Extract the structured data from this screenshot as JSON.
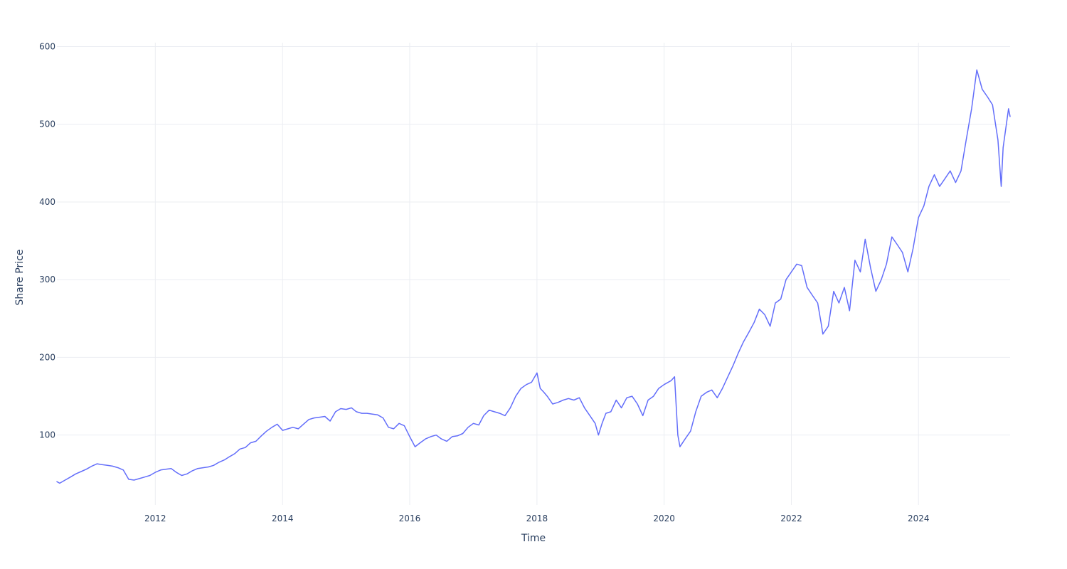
{
  "chart_data": {
    "type": "line",
    "title": "",
    "xlabel": "Time",
    "ylabel": "Share Price",
    "xlim": [
      "2010-06-15",
      "2025-06-10"
    ],
    "ylim": [
      10,
      605
    ],
    "x_ticks": [
      "2012",
      "2014",
      "2016",
      "2018",
      "2020",
      "2022",
      "2024"
    ],
    "y_ticks": [
      100,
      200,
      300,
      400,
      500,
      600
    ],
    "grid": true,
    "legend": "none",
    "colors": {
      "line": "#636efa",
      "grid": "#ebedf2",
      "text": "#2a3f5f"
    },
    "series": [
      {
        "x": [
          "2010-06-15",
          "2010-07-01",
          "2010-08-01",
          "2010-09-01",
          "2010-10-01",
          "2010-11-01",
          "2010-12-01",
          "2011-01-01",
          "2011-02-01",
          "2011-03-01",
          "2011-04-01",
          "2011-05-01",
          "2011-06-01",
          "2011-07-01",
          "2011-08-01",
          "2011-09-01",
          "2011-10-01",
          "2011-11-01",
          "2011-12-01",
          "2012-01-01",
          "2012-02-01",
          "2012-03-01",
          "2012-04-01",
          "2012-05-01",
          "2012-06-01",
          "2012-07-01",
          "2012-08-01",
          "2012-09-01",
          "2012-10-01",
          "2012-11-01",
          "2012-12-01",
          "2013-01-01",
          "2013-02-01",
          "2013-03-01",
          "2013-04-01",
          "2013-05-01",
          "2013-06-01",
          "2013-07-01",
          "2013-08-01",
          "2013-09-01",
          "2013-10-01",
          "2013-11-01",
          "2013-12-01",
          "2014-01-01",
          "2014-02-01",
          "2014-03-01",
          "2014-04-01",
          "2014-05-01",
          "2014-06-01",
          "2014-07-01",
          "2014-08-01",
          "2014-09-01",
          "2014-10-01",
          "2014-11-01",
          "2014-12-01",
          "2015-01-01",
          "2015-02-01",
          "2015-03-01",
          "2015-04-01",
          "2015-05-01",
          "2015-06-01",
          "2015-07-01",
          "2015-08-01",
          "2015-09-01",
          "2015-10-01",
          "2015-11-01",
          "2015-12-01",
          "2016-01-01",
          "2016-02-01",
          "2016-03-01",
          "2016-04-01",
          "2016-05-01",
          "2016-06-01",
          "2016-07-01",
          "2016-08-01",
          "2016-09-01",
          "2016-10-01",
          "2016-11-01",
          "2016-12-01",
          "2017-01-01",
          "2017-02-01",
          "2017-03-01",
          "2017-04-01",
          "2017-05-01",
          "2017-06-01",
          "2017-07-01",
          "2017-08-01",
          "2017-09-01",
          "2017-10-01",
          "2017-11-01",
          "2017-12-01",
          "2018-01-01",
          "2018-01-20",
          "2018-02-10",
          "2018-03-01",
          "2018-04-01",
          "2018-05-01",
          "2018-06-01",
          "2018-07-01",
          "2018-08-01",
          "2018-09-01",
          "2018-10-01",
          "2018-11-01",
          "2018-12-01",
          "2018-12-20",
          "2019-01-10",
          "2019-02-01",
          "2019-03-01",
          "2019-04-01",
          "2019-05-01",
          "2019-06-01",
          "2019-07-01",
          "2019-08-01",
          "2019-09-01",
          "2019-10-01",
          "2019-11-01",
          "2019-12-01",
          "2020-01-01",
          "2020-02-10",
          "2020-03-01",
          "2020-03-20",
          "2020-04-01",
          "2020-05-01",
          "2020-06-01",
          "2020-07-01",
          "2020-08-01",
          "2020-09-01",
          "2020-10-01",
          "2020-11-01",
          "2020-12-01",
          "2021-01-01",
          "2021-02-01",
          "2021-03-01",
          "2021-04-01",
          "2021-05-01",
          "2021-06-01",
          "2021-07-01",
          "2021-08-01",
          "2021-09-01",
          "2021-10-01",
          "2021-11-01",
          "2021-12-01",
          "2022-01-01",
          "2022-02-01",
          "2022-03-01",
          "2022-04-01",
          "2022-05-01",
          "2022-06-01",
          "2022-06-20",
          "2022-07-01",
          "2022-08-01",
          "2022-09-01",
          "2022-10-01",
          "2022-11-01",
          "2022-12-01",
          "2023-01-01",
          "2023-02-01",
          "2023-03-01",
          "2023-04-01",
          "2023-05-01",
          "2023-06-01",
          "2023-07-01",
          "2023-08-01",
          "2023-09-01",
          "2023-10-01",
          "2023-11-01",
          "2023-12-01",
          "2024-01-01",
          "2024-02-01",
          "2024-03-01",
          "2024-04-01",
          "2024-05-01",
          "2024-06-01",
          "2024-07-01",
          "2024-08-01",
          "2024-09-01",
          "2024-10-01",
          "2024-11-01",
          "2024-12-01",
          "2025-01-01",
          "2025-02-01",
          "2025-03-01",
          "2025-04-01",
          "2025-04-20",
          "2025-05-01",
          "2025-06-01",
          "2025-06-10"
        ],
        "y": [
          40,
          38,
          42,
          46,
          50,
          53,
          56,
          60,
          63,
          62,
          61,
          60,
          58,
          55,
          43,
          42,
          44,
          46,
          48,
          52,
          55,
          56,
          57,
          52,
          48,
          50,
          54,
          57,
          58,
          59,
          61,
          65,
          68,
          72,
          76,
          82,
          84,
          90,
          92,
          99,
          105,
          110,
          114,
          106,
          108,
          110,
          108,
          114,
          120,
          122,
          123,
          124,
          118,
          130,
          134,
          133,
          135,
          130,
          128,
          128,
          127,
          126,
          122,
          110,
          108,
          115,
          112,
          98,
          85,
          90,
          95,
          98,
          100,
          95,
          92,
          98,
          99,
          102,
          110,
          115,
          113,
          125,
          132,
          130,
          128,
          125,
          135,
          150,
          160,
          165,
          168,
          180,
          160,
          155,
          150,
          140,
          142,
          145,
          147,
          145,
          148,
          135,
          125,
          115,
          100,
          115,
          128,
          130,
          145,
          135,
          148,
          150,
          140,
          125,
          145,
          150,
          160,
          165,
          170,
          175,
          100,
          85,
          95,
          105,
          130,
          150,
          155,
          158,
          148,
          160,
          175,
          190,
          205,
          220,
          232,
          245,
          262,
          255,
          240,
          270,
          275,
          300,
          310,
          320,
          318,
          290,
          280,
          270,
          245,
          230,
          240,
          285,
          270,
          290,
          260,
          325,
          310,
          352,
          315,
          285,
          300,
          320,
          355,
          345,
          335,
          310,
          340,
          380,
          395,
          420,
          435,
          420,
          430,
          440,
          425,
          440,
          480,
          520,
          570,
          545,
          535,
          525,
          480,
          420,
          470,
          520,
          510
        ]
      }
    ]
  }
}
